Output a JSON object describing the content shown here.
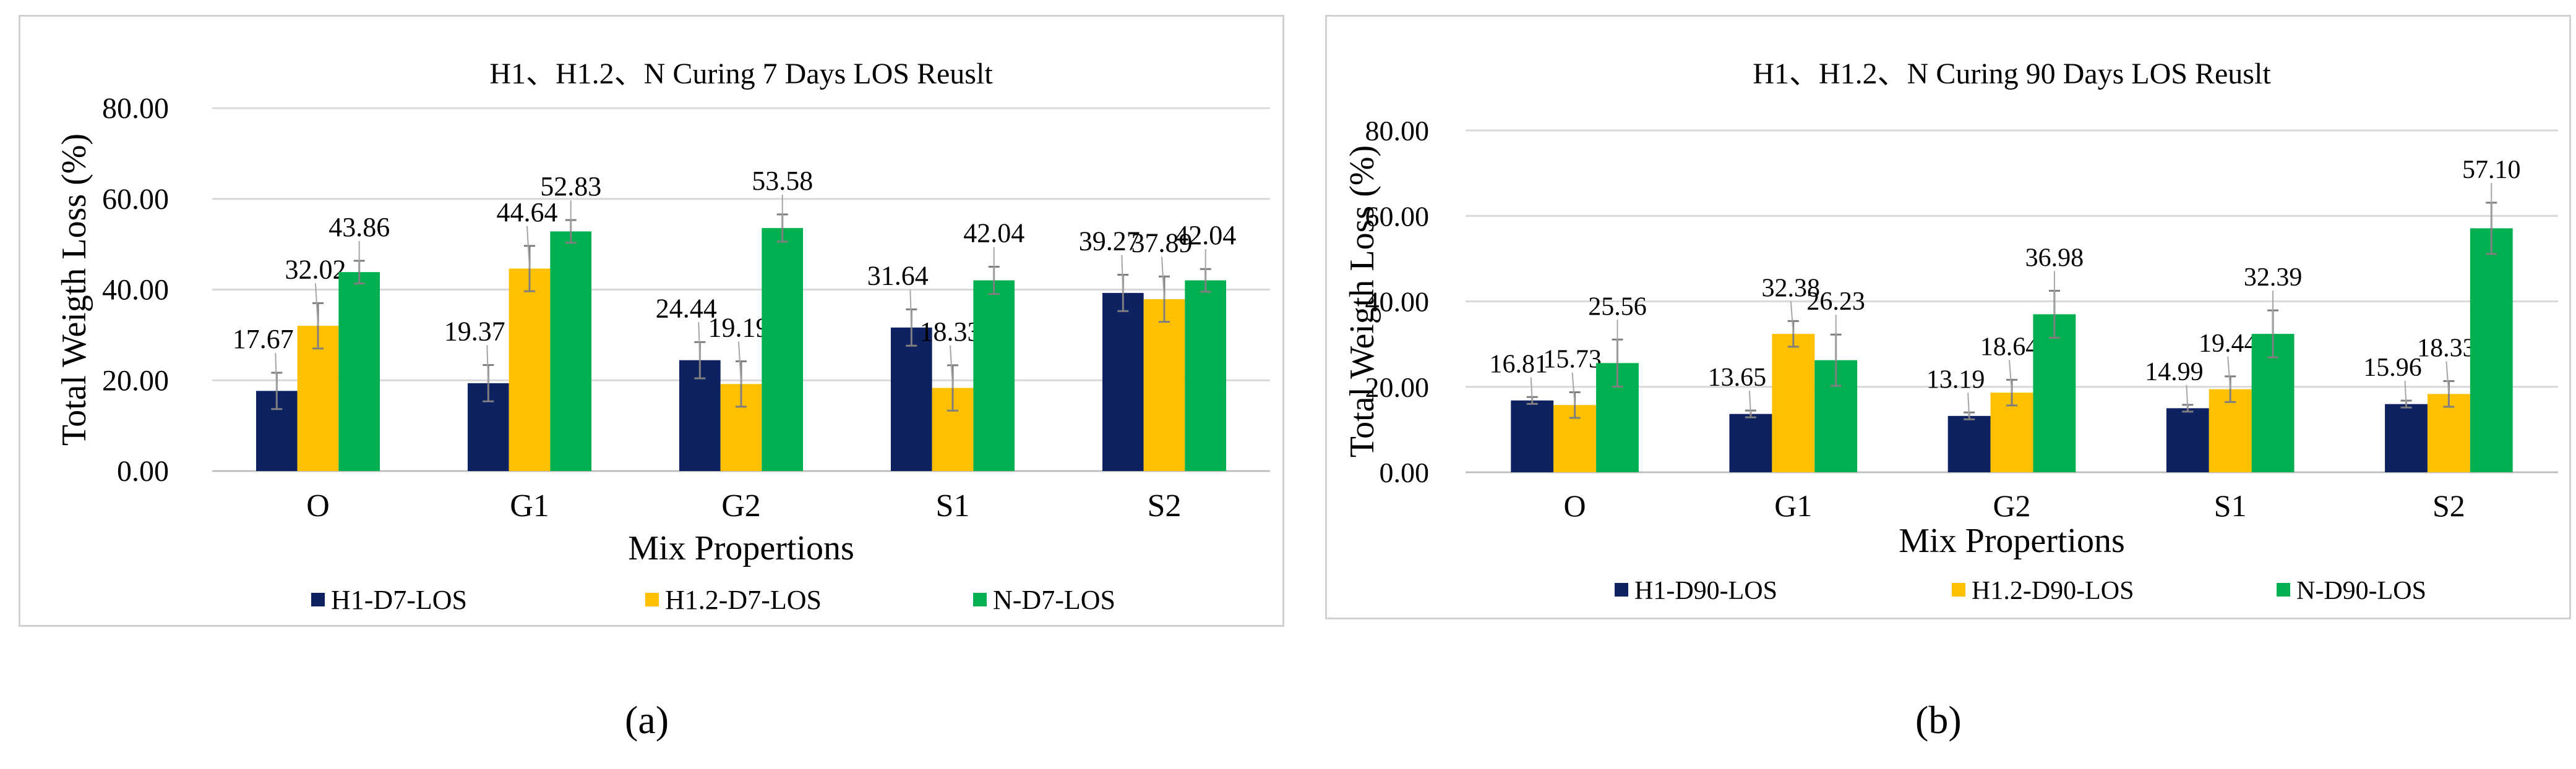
{
  "chart_data": [
    {
      "type": "bar",
      "title": "H1、H1.2、N Curing 7 Days LOS Reuslt",
      "xlabel": "Mix Propertions",
      "ylabel": "Total Weigth Loss (%)",
      "ylim": [
        0,
        80
      ],
      "yticks": [
        "0.00",
        "20.00",
        "40.00",
        "60.00",
        "80.00"
      ],
      "grid": true,
      "legend_position": "bottom",
      "categories": [
        "O",
        "G1",
        "G2",
        "S1",
        "S2"
      ],
      "series": [
        {
          "name": "H1-D7-LOS",
          "color": "#0e2160",
          "values": [
            17.67,
            19.37,
            24.44,
            31.64,
            39.27
          ],
          "labels": [
            "17.67",
            "19.37",
            "24.44",
            "31.64",
            "39.27"
          ],
          "errors": [
            4,
            4,
            4,
            4,
            4
          ]
        },
        {
          "name": "H1.2-D7-LOS",
          "color": "#ffc000",
          "values": [
            32.02,
            44.64,
            19.19,
            18.33,
            37.89
          ],
          "labels": [
            "32.02",
            "44.64",
            "19.19",
            "18.33",
            "37.89"
          ],
          "errors": [
            5,
            5,
            5,
            5,
            5
          ]
        },
        {
          "name": "N-D7-LOS",
          "color": "#00b050",
          "values": [
            43.86,
            52.83,
            53.58,
            42.04,
            42.04
          ],
          "labels": [
            "43.86",
            "52.83",
            "53.58",
            "42.04",
            "42.04"
          ],
          "errors": [
            2.5,
            2.5,
            3,
            3,
            2.5
          ]
        }
      ]
    },
    {
      "type": "bar",
      "title": "H1、H1.2、N Curing 90 Days LOS Reuslt",
      "xlabel": "Mix Propertions",
      "ylabel": "Total Weigth Loss (%)",
      "ylim": [
        0,
        80
      ],
      "yticks": [
        "0.00",
        "20.00",
        "40.00",
        "60.00",
        "80.00"
      ],
      "grid": true,
      "legend_position": "bottom",
      "categories": [
        "O",
        "G1",
        "G2",
        "S1",
        "S2"
      ],
      "series": [
        {
          "name": "H1-D90-LOS",
          "color": "#0e2160",
          "values": [
            16.81,
            13.65,
            13.19,
            14.99,
            15.96
          ],
          "labels": [
            "16.81",
            "13.65",
            "13.19",
            "14.99",
            "15.96"
          ],
          "errors": [
            0.8,
            0.8,
            0.8,
            0.8,
            0.8
          ]
        },
        {
          "name": "H1.2-D90-LOS",
          "color": "#ffc000",
          "values": [
            15.73,
            32.38,
            18.64,
            19.44,
            18.33
          ],
          "labels": [
            "15.73",
            "32.38",
            "18.64",
            "19.44",
            "18.33"
          ],
          "errors": [
            3,
            3,
            3,
            3,
            3
          ]
        },
        {
          "name": "N-D90-LOS",
          "color": "#00b050",
          "values": [
            25.56,
            26.23,
            36.98,
            32.39,
            57.1
          ],
          "labels": [
            "25.56",
            "26.23",
            "36.98",
            "32.39",
            "57.10"
          ],
          "errors": [
            5.5,
            6,
            5.5,
            5.5,
            6
          ]
        }
      ]
    }
  ],
  "subfigures": {
    "a": "(a)",
    "b": "(b)"
  }
}
